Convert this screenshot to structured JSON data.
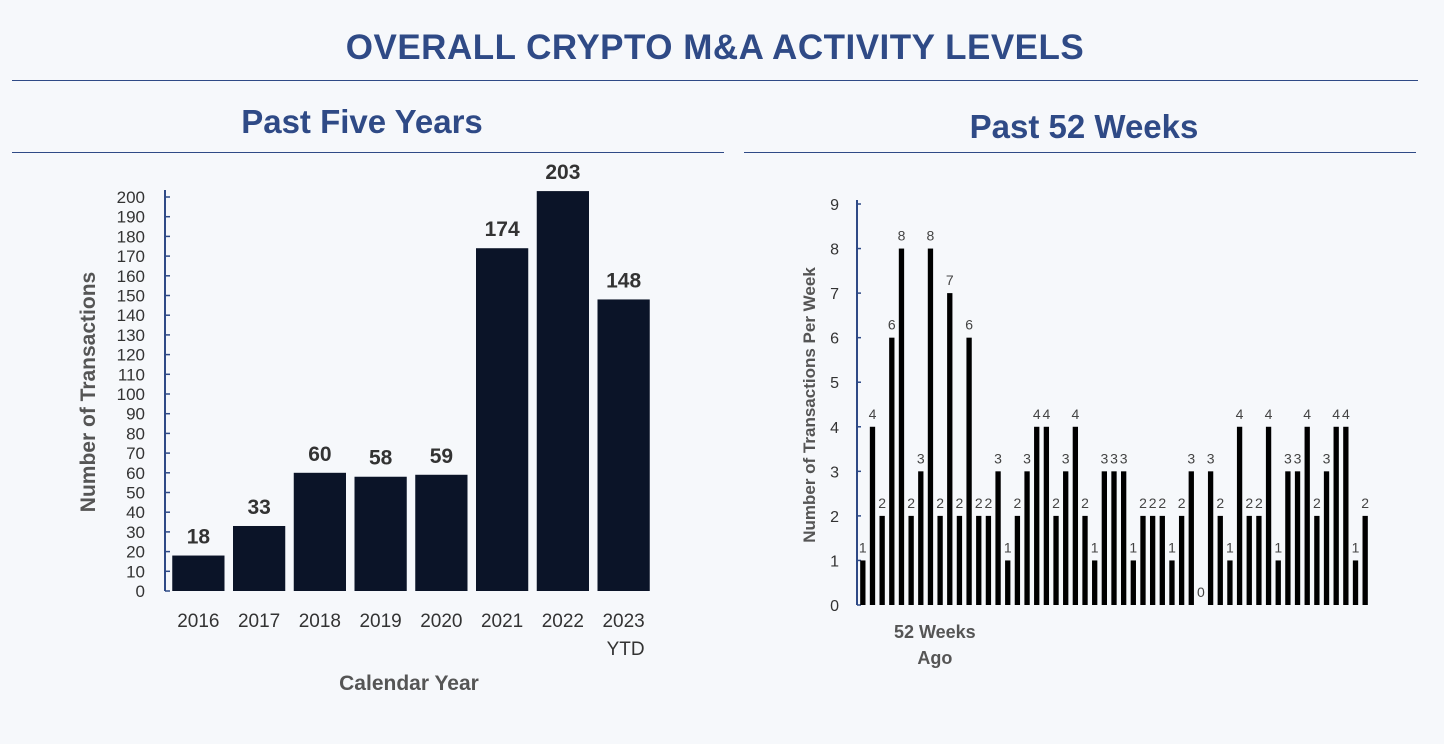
{
  "page": {
    "title": "OVERALL CRYPTO M&A ACTIVITY LEVELS"
  },
  "chart_data": [
    {
      "type": "bar",
      "title": "Past Five Years",
      "xlabel": "Calendar Year",
      "ylabel": "Number of Transactions",
      "categories": [
        "2016",
        "2017",
        "2018",
        "2019",
        "2020",
        "2021",
        "2022",
        "2023 YTD"
      ],
      "values": [
        18,
        33,
        60,
        58,
        59,
        174,
        203,
        148
      ],
      "ylim": [
        0,
        200
      ],
      "ytick_step": 10,
      "color": "#0b1428",
      "grid": false,
      "legend": "none"
    },
    {
      "type": "bar",
      "title": "Past 52 Weeks",
      "xlabel": "",
      "ylabel": "Number of Transactions Per Week",
      "category_label": "52 Weeks Ago",
      "values": [
        1,
        4,
        2,
        6,
        8,
        2,
        3,
        8,
        2,
        7,
        2,
        6,
        2,
        2,
        3,
        1,
        2,
        3,
        4,
        4,
        2,
        3,
        4,
        2,
        1,
        3,
        3,
        3,
        1,
        2,
        2,
        2,
        1,
        2,
        3,
        0,
        3,
        2,
        1,
        4,
        2,
        2,
        4,
        1,
        3,
        3,
        4,
        2,
        3,
        4,
        4,
        1,
        2
      ],
      "ylim": [
        0,
        9
      ],
      "ytick_step": 1,
      "color": "#000000",
      "grid": false,
      "legend": "none"
    }
  ]
}
